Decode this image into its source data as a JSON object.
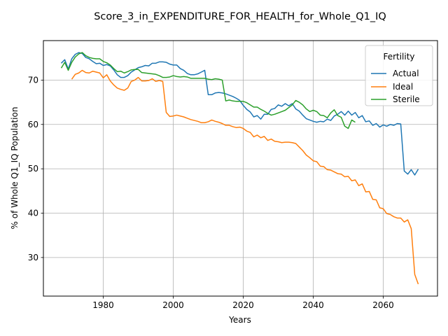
{
  "chart_data": {
    "type": "line",
    "title": "Score_3_in_EXPENDITURE_FOR_HEALTH_for_Whole_Q1_IQ",
    "xlabel": "Years",
    "ylabel": "% of Whole Q1_IQ Population",
    "xlim": [
      1962.9,
      2075.5
    ],
    "ylim": [
      21.3,
      78.9
    ],
    "xticks": [
      1980,
      2000,
      2020,
      2040,
      2060
    ],
    "yticks": [
      30,
      40,
      50,
      60,
      70
    ],
    "grid": true,
    "legend": {
      "title": "Fertility",
      "placement": "top-right"
    },
    "colors": {
      "Actual": "#1f77b4",
      "Ideal": "#ff7f0e",
      "Sterile": "#2ca02c"
    },
    "series": [
      {
        "name": "Actual",
        "x": [
          1968,
          1969,
          1970,
          1971,
          1972,
          1973,
          1974,
          1975,
          1976,
          1977,
          1978,
          1979,
          1980,
          1981,
          1982,
          1983,
          1984,
          1985,
          1986,
          1987,
          1988,
          1989,
          1990,
          1991,
          1992,
          1993,
          1994,
          1995,
          1996,
          1997,
          1998,
          1999,
          2000,
          2001,
          2002,
          2003,
          2004,
          2005,
          2006,
          2007,
          2008,
          2009,
          2010,
          2011,
          2012,
          2013,
          2014,
          2015,
          2016,
          2017,
          2018,
          2019,
          2020,
          2021,
          2022,
          2023,
          2024,
          2025,
          2026,
          2027,
          2028,
          2029,
          2030,
          2031,
          2032,
          2033,
          2034,
          2035,
          2036,
          2037,
          2038,
          2039,
          2040,
          2041,
          2042,
          2043,
          2044,
          2045,
          2046,
          2047,
          2048,
          2049,
          2050,
          2051,
          2052,
          2053,
          2054,
          2055,
          2056,
          2057,
          2058,
          2059,
          2060,
          2061,
          2062,
          2063,
          2064,
          2065,
          2066,
          2067,
          2068,
          2069,
          2070
        ],
        "y": [
          73.8,
          74.6,
          72.5,
          74.8,
          75.8,
          76.2,
          76.0,
          75.1,
          74.8,
          74.2,
          73.7,
          73.8,
          73.3,
          73.5,
          73.2,
          72.3,
          71.2,
          70.6,
          70.6,
          71.0,
          71.8,
          72.3,
          72.8,
          73.0,
          73.3,
          73.2,
          73.8,
          73.8,
          74.1,
          74.1,
          74.0,
          73.6,
          73.4,
          73.4,
          72.6,
          72.2,
          71.5,
          71.2,
          71.2,
          71.4,
          71.8,
          72.2,
          66.7,
          66.7,
          67.1,
          67.2,
          67.1,
          66.9,
          66.6,
          66.3,
          65.9,
          65.4,
          64.3,
          63.4,
          62.8,
          61.7,
          62.0,
          61.2,
          62.3,
          62.3,
          63.4,
          63.6,
          64.4,
          64.1,
          64.7,
          64.2,
          64.7,
          63.5,
          63.0,
          62.1,
          61.3,
          61.0,
          60.7,
          60.5,
          60.7,
          60.6,
          61.2,
          60.9,
          61.9,
          62.3,
          62.9,
          62.1,
          63.0,
          62.1,
          62.7,
          61.5,
          62.0,
          60.6,
          60.8,
          59.8,
          60.2,
          59.4,
          59.9,
          59.6,
          60.0,
          59.8,
          60.2,
          60.1,
          49.5,
          48.8,
          49.8,
          48.6,
          49.9
        ]
      },
      {
        "name": "Ideal",
        "x": [
          1971,
          1972,
          1973,
          1974,
          1975,
          1976,
          1977,
          1978,
          1979,
          1980,
          1981,
          1982,
          1983,
          1984,
          1985,
          1986,
          1987,
          1988,
          1989,
          1990,
          1991,
          1992,
          1993,
          1994,
          1995,
          1996,
          1997,
          1998,
          1999,
          2000,
          2001,
          2002,
          2003,
          2004,
          2005,
          2006,
          2007,
          2008,
          2009,
          2010,
          2011,
          2012,
          2013,
          2014,
          2015,
          2016,
          2017,
          2018,
          2019,
          2020,
          2021,
          2022,
          2023,
          2024,
          2025,
          2026,
          2027,
          2028,
          2029,
          2030,
          2031,
          2032,
          2033,
          2034,
          2035,
          2036,
          2037,
          2038,
          2039,
          2040,
          2041,
          2042,
          2043,
          2044,
          2045,
          2046,
          2047,
          2048,
          2049,
          2050,
          2051,
          2052,
          2053,
          2054,
          2055,
          2056,
          2057,
          2058,
          2059,
          2060,
          2061,
          2062,
          2063,
          2064,
          2065,
          2066,
          2067,
          2068,
          2069,
          2070
        ],
        "y": [
          70.2,
          71.3,
          71.6,
          72.2,
          71.7,
          71.6,
          72.0,
          71.8,
          71.6,
          70.5,
          71.2,
          69.8,
          68.9,
          68.2,
          67.9,
          67.7,
          68.2,
          69.7,
          70.0,
          70.6,
          69.8,
          69.8,
          69.9,
          70.3,
          69.7,
          69.9,
          69.7,
          62.7,
          61.8,
          61.9,
          62.1,
          61.9,
          61.7,
          61.4,
          61.1,
          60.9,
          60.7,
          60.4,
          60.4,
          60.6,
          61.0,
          60.7,
          60.5,
          60.2,
          59.8,
          59.8,
          59.5,
          59.3,
          59.4,
          59.1,
          58.5,
          58.2,
          57.2,
          57.6,
          57.0,
          57.3,
          56.4,
          56.7,
          56.2,
          56.1,
          55.9,
          56.0,
          56.0,
          55.9,
          55.7,
          54.9,
          54.1,
          53.1,
          52.5,
          51.8,
          51.6,
          50.6,
          50.5,
          49.8,
          49.7,
          49.3,
          48.9,
          48.8,
          48.2,
          48.3,
          47.3,
          47.5,
          46.2,
          46.6,
          44.8,
          44.9,
          43.1,
          43.0,
          41.2,
          41.0,
          39.9,
          39.7,
          39.2,
          38.9,
          38.9,
          38.0,
          38.5,
          36.5,
          26.2,
          24.0
        ]
      },
      {
        "name": "Sterile",
        "x": [
          1968,
          1969,
          1970,
          1971,
          1972,
          1973,
          1974,
          1975,
          1976,
          1977,
          1978,
          1979,
          1980,
          1981,
          1982,
          1983,
          1984,
          1985,
          1986,
          1987,
          1988,
          1989,
          1990,
          1991,
          1992,
          1993,
          1994,
          1995,
          1996,
          1997,
          1998,
          1999,
          2000,
          2001,
          2002,
          2003,
          2004,
          2005,
          2006,
          2007,
          2008,
          2009,
          2010,
          2011,
          2012,
          2013,
          2014,
          2015,
          2016,
          2017,
          2018,
          2019,
          2020,
          2021,
          2022,
          2023,
          2024,
          2025,
          2026,
          2027,
          2028,
          2029,
          2030,
          2031,
          2032,
          2033,
          2034,
          2035,
          2036,
          2037,
          2038,
          2039,
          2040,
          2041,
          2042,
          2043,
          2044,
          2045,
          2046,
          2047,
          2048,
          2049,
          2050,
          2051,
          2052
        ],
        "y": [
          72.7,
          74.0,
          72.2,
          74.0,
          75.2,
          75.9,
          76.2,
          75.5,
          75.1,
          74.9,
          74.8,
          74.8,
          74.2,
          73.9,
          73.4,
          72.6,
          71.9,
          72.0,
          71.6,
          71.9,
          72.3,
          72.4,
          72.4,
          71.7,
          71.6,
          71.5,
          71.4,
          71.3,
          71.0,
          70.6,
          70.6,
          70.7,
          71.0,
          70.8,
          70.7,
          70.8,
          70.7,
          70.4,
          70.4,
          70.4,
          70.4,
          70.4,
          70.2,
          70.1,
          70.3,
          70.2,
          70.0,
          65.3,
          65.5,
          65.3,
          65.2,
          65.2,
          65.2,
          64.9,
          64.4,
          63.9,
          63.9,
          63.4,
          63.0,
          62.5,
          62.1,
          62.3,
          62.6,
          62.9,
          63.2,
          63.8,
          64.4,
          65.4,
          65.0,
          64.4,
          63.5,
          62.9,
          63.2,
          62.9,
          62.1,
          62.0,
          61.5,
          62.6,
          63.3,
          62.0,
          61.6,
          59.6,
          59.1,
          61.0,
          60.5
        ]
      }
    ]
  }
}
